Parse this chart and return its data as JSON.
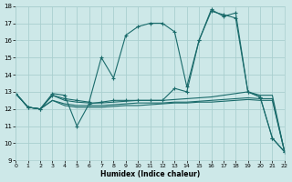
{
  "xlabel": "Humidex (Indice chaleur)",
  "xlim": [
    0,
    22
  ],
  "ylim": [
    9,
    18
  ],
  "yticks": [
    9,
    10,
    11,
    12,
    13,
    14,
    15,
    16,
    17,
    18
  ],
  "xticks": [
    0,
    1,
    2,
    3,
    4,
    5,
    6,
    7,
    8,
    9,
    10,
    11,
    12,
    13,
    14,
    15,
    16,
    17,
    18,
    19,
    20,
    21,
    22
  ],
  "bg_color": "#cde8e8",
  "grid_color": "#aacfcf",
  "line_color": "#1a6b6b",
  "line_width": 0.8,
  "x_values": [
    0,
    1,
    2,
    3,
    4,
    5,
    6,
    7,
    8,
    9,
    10,
    11,
    12,
    13,
    14,
    15,
    16,
    17,
    18,
    19,
    20,
    21,
    22
  ],
  "series": [
    {
      "y": [
        12.9,
        12.1,
        12.0,
        12.9,
        12.8,
        11.0,
        12.3,
        12.4,
        12.5,
        12.5,
        12.5,
        12.5,
        12.5,
        13.2,
        13.0,
        16.0,
        17.7,
        17.5,
        17.3,
        13.0,
        12.7,
        10.3,
        9.5
      ],
      "marker": true
    },
    {
      "y": [
        12.9,
        12.1,
        12.0,
        12.8,
        12.6,
        12.5,
        12.4,
        15.0,
        13.8,
        16.3,
        16.8,
        17.0,
        17.0,
        16.5,
        13.3,
        16.0,
        17.8,
        17.4,
        17.6,
        13.0,
        12.7,
        10.3,
        9.5
      ],
      "marker": true
    },
    {
      "y": [
        12.9,
        12.1,
        12.0,
        12.8,
        12.5,
        12.4,
        12.35,
        12.35,
        12.4,
        12.45,
        12.5,
        12.5,
        12.5,
        12.55,
        12.6,
        12.65,
        12.7,
        12.8,
        12.9,
        13.0,
        12.8,
        12.8,
        9.5
      ],
      "marker": false
    },
    {
      "y": [
        12.9,
        12.1,
        12.0,
        12.5,
        12.3,
        12.2,
        12.2,
        12.2,
        12.25,
        12.3,
        12.35,
        12.35,
        12.35,
        12.4,
        12.4,
        12.45,
        12.5,
        12.55,
        12.6,
        12.65,
        12.6,
        12.6,
        9.5
      ],
      "marker": false
    },
    {
      "y": [
        12.9,
        12.1,
        12.0,
        12.5,
        12.2,
        12.1,
        12.1,
        12.1,
        12.15,
        12.2,
        12.2,
        12.25,
        12.3,
        12.35,
        12.35,
        12.4,
        12.4,
        12.45,
        12.5,
        12.55,
        12.5,
        12.5,
        9.5
      ],
      "marker": false
    }
  ]
}
